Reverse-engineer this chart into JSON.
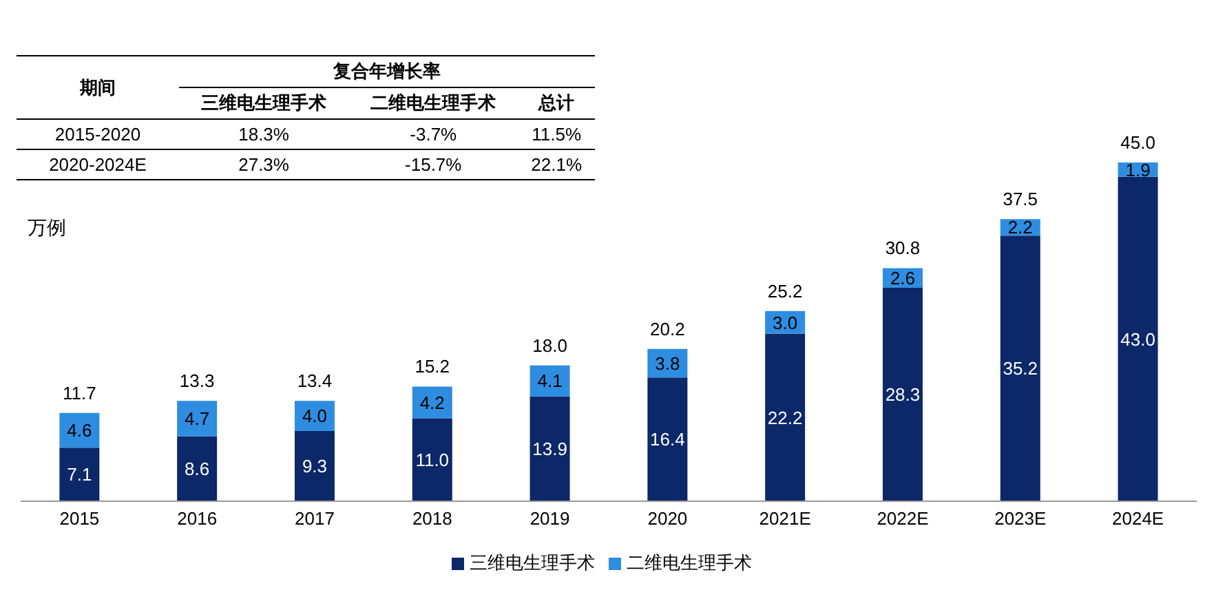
{
  "chart_data": {
    "type": "bar",
    "stacked": true,
    "ylabel": "万例",
    "categories": [
      "2015",
      "2016",
      "2017",
      "2018",
      "2019",
      "2020",
      "2021E",
      "2022E",
      "2023E",
      "2024E"
    ],
    "series": [
      {
        "name": "三维电生理手术",
        "color": "#0c2869",
        "values": [
          7.1,
          8.6,
          9.3,
          11.0,
          13.9,
          16.4,
          22.2,
          28.3,
          35.2,
          43.0
        ],
        "value_labels": [
          "7.1",
          "8.6",
          "9.3",
          "11.0",
          "13.9",
          "16.4",
          "22.2",
          "28.3",
          "35.2",
          "43.0"
        ]
      },
      {
        "name": "二维电生理手术",
        "color": "#2e8de0",
        "values": [
          4.6,
          4.7,
          4.0,
          4.2,
          4.1,
          3.8,
          3.0,
          2.6,
          2.2,
          1.9
        ],
        "value_labels": [
          "4.6",
          "4.7",
          "4.0",
          "4.2",
          "4.1",
          "3.8",
          "3.0",
          "2.6",
          "2.2",
          "1.9"
        ]
      }
    ],
    "totals": [
      "11.7",
      "13.3",
      "13.4",
      "15.2",
      "18.0",
      "20.2",
      "25.2",
      "30.8",
      "37.5",
      "45.0"
    ],
    "legend": "bottom",
    "grid": false,
    "annotations": [
      "期间",
      "复合年增长率",
      "三维电生理手术",
      "二维电生理手术",
      "总计",
      "2015-2020",
      "18.3%",
      "-3.7%",
      "11.5%",
      "2020-2024E",
      "27.3%",
      "-15.7%",
      "22.1%"
    ]
  }
}
